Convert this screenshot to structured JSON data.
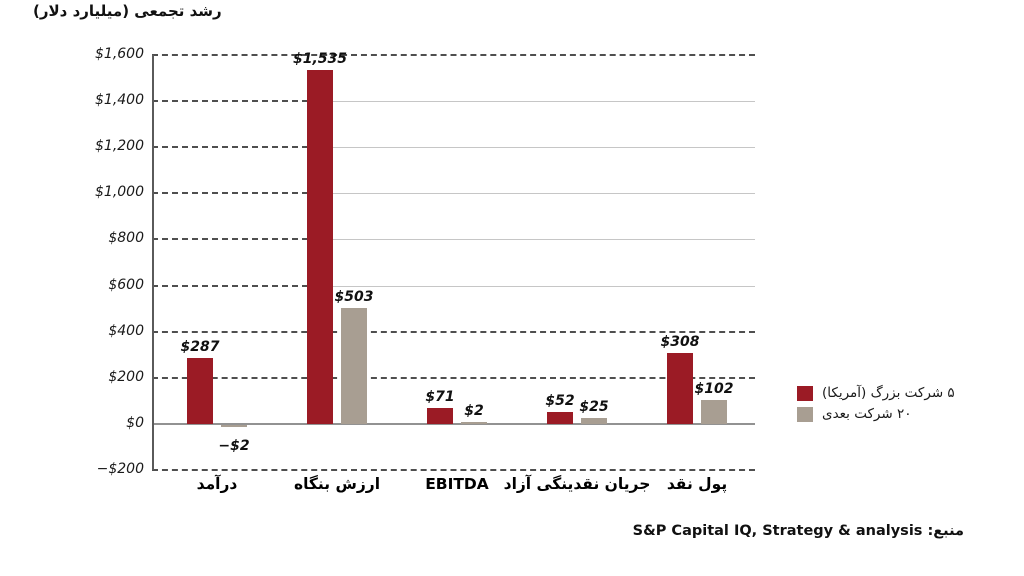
{
  "title": "رشد تجمعی (میلیارد دلار)",
  "source": "منبع: S&P Capital IQ, Strategy & analysis",
  "colors": {
    "series1": "#9B1B25",
    "series2": "#A89E92",
    "axis": "#929292",
    "grid_dark": "#4f4f4f",
    "grid_faint": "#c6c6c6"
  },
  "chart_data": {
    "type": "bar",
    "title": "رشد تجمعی (میلیارد دلار)",
    "categories": [
      "درآمد",
      "ارزش بنگاه",
      "EBITDA",
      "جریان نقدینگی آزاد",
      "پول نقد"
    ],
    "series": [
      {
        "name": "۵ شرکت بزرگ (آمریکا)",
        "color": "#9B1B25",
        "values": [
          287,
          1535,
          71,
          52,
          308
        ],
        "labels": [
          "$287",
          "$1,535",
          "$71",
          "$52",
          "$308"
        ]
      },
      {
        "name": "۲۰ شرکت بعدی",
        "color": "#A89E92",
        "values": [
          -2,
          503,
          2,
          25,
          102
        ],
        "labels": [
          "−$2",
          "$503",
          "$2",
          "$25",
          "$102"
        ]
      }
    ],
    "ylim": [
      -200,
      1600
    ],
    "ytick_step": 200,
    "yticks": [
      {
        "value": 1600,
        "label": "$1,600"
      },
      {
        "value": 1400,
        "label": "$1,400"
      },
      {
        "value": 1200,
        "label": "$1,200"
      },
      {
        "value": 1000,
        "label": "$1,000"
      },
      {
        "value": 800,
        "label": "$800"
      },
      {
        "value": 600,
        "label": "$600"
      },
      {
        "value": 400,
        "label": "$400"
      },
      {
        "value": 200,
        "label": "$200"
      },
      {
        "value": 0,
        "label": "$0"
      },
      {
        "value": -200,
        "label": "−$200"
      }
    ],
    "grid": "horizontal dashed",
    "legend_position": "right"
  }
}
